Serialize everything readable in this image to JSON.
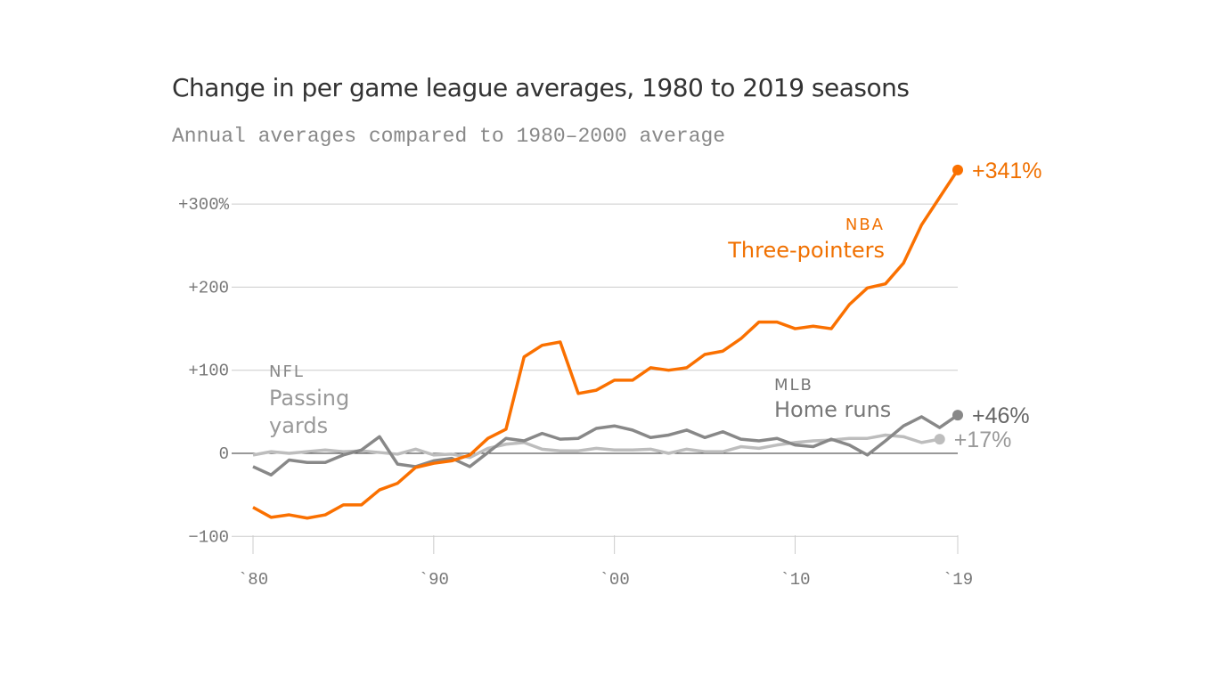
{
  "chart_data": {
    "type": "line",
    "title": "Change in per game league averages, 1980 to 2019 seasons",
    "subtitle": "Annual averages compared to 1980–2000 average",
    "ylim": [
      -110,
      345
    ],
    "y_ticks": [
      {
        "value": 300,
        "label": "+300%"
      },
      {
        "value": 200,
        "label": "+200"
      },
      {
        "value": 100,
        "label": "+100"
      },
      {
        "value": 0,
        "label": "0"
      },
      {
        "value": -100,
        "label": "−100"
      }
    ],
    "x_ticks": [
      {
        "value": 1980,
        "label": "`80"
      },
      {
        "value": 1990,
        "label": "`90"
      },
      {
        "value": 2000,
        "label": "`00"
      },
      {
        "value": 2010,
        "label": "`10"
      },
      {
        "value": 2019,
        "label": "`19"
      }
    ],
    "grid": true,
    "series": [
      {
        "league": "NBA",
        "name": "Three-pointers",
        "color": "#fa7000",
        "end_label": "+341%",
        "start_year": 1980,
        "values": [
          -65,
          -77,
          -74,
          -78,
          -74,
          -62,
          -62,
          -44,
          -36,
          -17,
          -12,
          -9,
          -2,
          18,
          29,
          116,
          130,
          134,
          72,
          76,
          88,
          88,
          103,
          100,
          103,
          119,
          123,
          138,
          158,
          158,
          150,
          153,
          150,
          179,
          199,
          204,
          229,
          275,
          308,
          341
        ]
      },
      {
        "league": "MLB",
        "name": "Home runs",
        "color": "#888888",
        "end_label": "+46%",
        "start_year": 1980,
        "values": [
          -16,
          -26,
          -8,
          -11,
          -11,
          -2,
          4,
          20,
          -13,
          -16,
          -9,
          -6,
          -16,
          1,
          18,
          15,
          24,
          17,
          18,
          30,
          33,
          28,
          19,
          22,
          28,
          19,
          26,
          17,
          15,
          18,
          10,
          8,
          17,
          10,
          -2,
          15,
          33,
          44,
          31,
          46
        ]
      },
      {
        "league": "NFL",
        "name": "Passing yards",
        "color": "#bdbdbd",
        "end_label": "+17%",
        "start_year": 1980,
        "values": [
          -2,
          2,
          0,
          2,
          4,
          2,
          3,
          1,
          -1,
          5,
          -2,
          -1,
          -5,
          6,
          11,
          13,
          5,
          3,
          3,
          6,
          4,
          4,
          5,
          0,
          5,
          2,
          2,
          8,
          6,
          10,
          13,
          15,
          16,
          18,
          18,
          22,
          20,
          13,
          17
        ]
      }
    ]
  }
}
